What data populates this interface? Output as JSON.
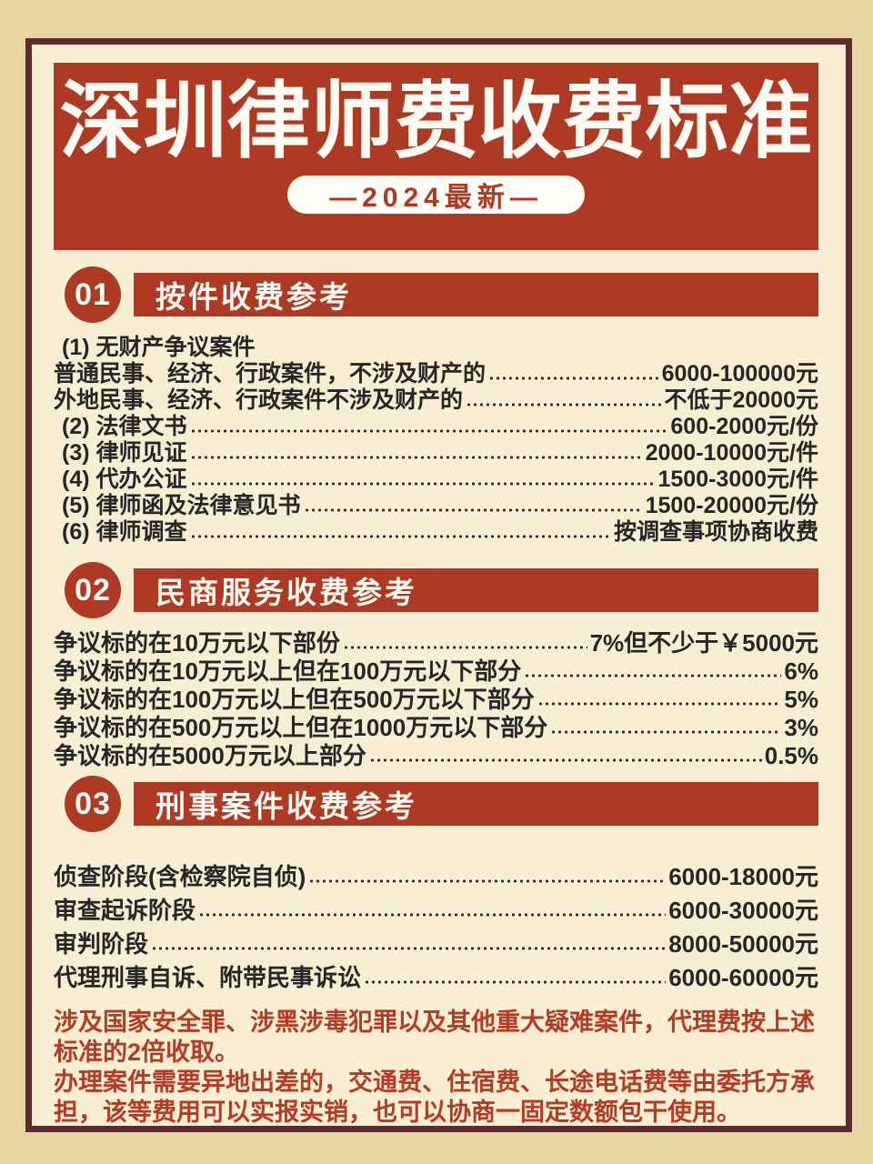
{
  "header": {
    "title": "深圳律师费收费标准",
    "badge": "—2024最新—"
  },
  "sections": [
    {
      "number": "01",
      "heading": "按件收费参考",
      "rows": [
        {
          "label": "(1) 无财产争议案件",
          "value": ""
        },
        {
          "label": "普通民事、经济、行政案件，不涉及财产的",
          "value": "6000-100000元"
        },
        {
          "label": "外地民事、经济、行政案件不涉及财产的",
          "value": "不低于20000元"
        },
        {
          "label": "(2) 法律文书",
          "value": "600-2000元/份"
        },
        {
          "label": "(3) 律师见证",
          "value": "2000-10000元/件"
        },
        {
          "label": "(4) 代办公证",
          "value": "1500-3000元/件"
        },
        {
          "label": "(5) 律师函及法律意见书",
          "value": "1500-20000元/份"
        },
        {
          "label": "(6) 律师调查",
          "value": "按调查事项协商收费"
        }
      ]
    },
    {
      "number": "02",
      "heading": "民商服务收费参考",
      "rows": [
        {
          "label": "争议标的在10万元以下部份 ",
          "value": "7%但不少于￥5000元"
        },
        {
          "label": "争议标的在10万元以上但在100万元以下部分",
          "value": "6%"
        },
        {
          "label": "争议标的在100万元以上但在500万元以下部分",
          "value": "5%"
        },
        {
          "label": "争议标的在500万元以上但在1000万元以下部分",
          "value": "3%"
        },
        {
          "label": "争议标的在5000万元以上部分",
          "value": "0.5%"
        }
      ]
    },
    {
      "number": "03",
      "heading": "刑事案件收费参考",
      "rows": [
        {
          "label": "侦查阶段(含检察院自侦)",
          "value": "6000-18000元"
        },
        {
          "label": "审查起诉阶段",
          "value": "6000-30000元"
        },
        {
          "label": "审判阶段",
          "value": "8000-50000元"
        },
        {
          "label": "代理刑事自诉、附带民事诉讼",
          "value": "6000-60000元"
        }
      ]
    }
  ],
  "notes": [
    "涉及国家安全罪、涉黑涉毒犯罪以及其他重大疑难案件，代理费按上述标准的2倍收取。",
    "办理案件需要异地出差的，交通费、住宿费、长途电话费等由委托方承担，该等费用可以实报实销，也可以协商一固定数额包干使用。"
  ],
  "theme": {
    "brick_red": "#ae3a24",
    "frame_border": "#5e2b30",
    "panel_cream": "#f8eed4",
    "page_tan": "#e9d4a3",
    "body_text": "#262626",
    "note_red": "#b43c25",
    "badge_bg": "#fffef7",
    "title_text": "#fdfbf3"
  }
}
